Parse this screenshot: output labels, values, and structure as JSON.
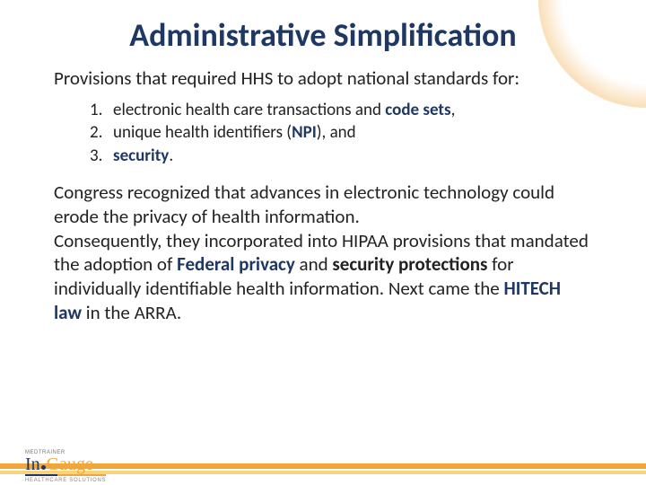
{
  "colors": {
    "title": "#1f3763",
    "accent_bold": "#1f3763",
    "body_text": "#222222",
    "stripe_orange": "#f0a63b",
    "stripe_yellow": "#f7d37a",
    "background": "#ffffff"
  },
  "typography": {
    "title_fontsize": 36,
    "title_weight": 700,
    "body_fontsize": 21,
    "list_fontsize": 19,
    "font_family": "Calibri"
  },
  "title": "Administrative Simplification",
  "intro": "Provisions that required HHS to adopt national standards for:",
  "list": [
    {
      "num": "1.",
      "pre": "electronic health care transactions and ",
      "bold": "code sets",
      "post": ","
    },
    {
      "num": "2.",
      "pre": "unique health identifiers (",
      "bold": "NPI",
      "post": "), and"
    },
    {
      "num": "3.",
      "pre": "",
      "bold": "security",
      "post": "."
    }
  ],
  "body": {
    "p1_a": "Congress recognized that advances in electronic technology could erode the privacy of health information.",
    "p2_a": "Consequently, they incorporated into HIPAA provisions that mandated the adoption of ",
    "p2_bold1": "Federal privacy",
    "p2_b": " and ",
    "p2_bold2": "security protections",
    "p2_c": " for individually identifiable health information.  Next came the ",
    "p2_bold3": "HITECH law",
    "p2_d": " in the ARRA."
  },
  "logo": {
    "badge": "MEDTRAINER",
    "part1": "In",
    "part2": "Gauge",
    "subtitle": "HEALTHCARE SOLUTIONS"
  }
}
